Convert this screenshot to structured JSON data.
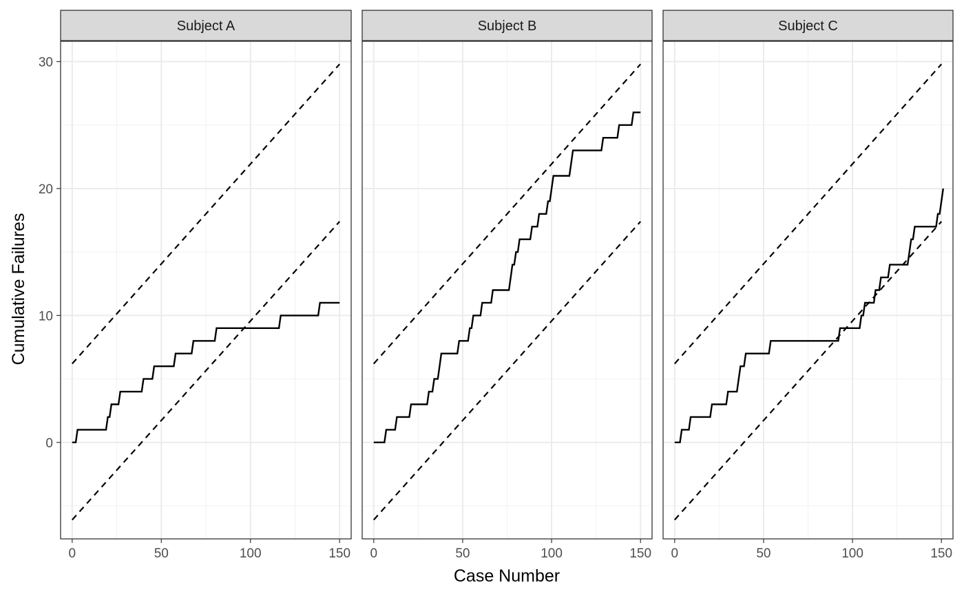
{
  "chart_data": {
    "type": "line",
    "xlabel": "Case Number",
    "ylabel": "Cumulative Failures",
    "xlim": [
      -6.5,
      156.5
    ],
    "ylim": [
      -7.6,
      31.6
    ],
    "x_ticks": [
      0,
      50,
      100,
      150
    ],
    "y_ticks": [
      0,
      10,
      20,
      30
    ],
    "grid": true,
    "bounds": {
      "upper": {
        "x": [
          0,
          150
        ],
        "y": [
          6.2,
          29.8
        ]
      },
      "lower": {
        "x": [
          0,
          150
        ],
        "y": [
          -6.1,
          17.4
        ]
      }
    },
    "panels": [
      {
        "title": "Subject A",
        "steps": [
          [
            0,
            0
          ],
          [
            2,
            0
          ],
          [
            3,
            1
          ],
          [
            19,
            1
          ],
          [
            20,
            2
          ],
          [
            21,
            2
          ],
          [
            22,
            3
          ],
          [
            26,
            3
          ],
          [
            27,
            4
          ],
          [
            39,
            4
          ],
          [
            40,
            5
          ],
          [
            45,
            5
          ],
          [
            46,
            6
          ],
          [
            57,
            6
          ],
          [
            58,
            7
          ],
          [
            67,
            7
          ],
          [
            68,
            8
          ],
          [
            80,
            8
          ],
          [
            81,
            9
          ],
          [
            116,
            9
          ],
          [
            117,
            10
          ],
          [
            138,
            10
          ],
          [
            139,
            11
          ],
          [
            150,
            11
          ]
        ]
      },
      {
        "title": "Subject B",
        "steps": [
          [
            0,
            0
          ],
          [
            6,
            0
          ],
          [
            7,
            1
          ],
          [
            12,
            1
          ],
          [
            13,
            2
          ],
          [
            20,
            2
          ],
          [
            21,
            3
          ],
          [
            30,
            3
          ],
          [
            31,
            4
          ],
          [
            33,
            4
          ],
          [
            34,
            5
          ],
          [
            36,
            5
          ],
          [
            37,
            6
          ],
          [
            37,
            6
          ],
          [
            38,
            7
          ],
          [
            47,
            7
          ],
          [
            48,
            8
          ],
          [
            53,
            8
          ],
          [
            54,
            9
          ],
          [
            55,
            9
          ],
          [
            56,
            10
          ],
          [
            60,
            10
          ],
          [
            61,
            11
          ],
          [
            66,
            11
          ],
          [
            67,
            12
          ],
          [
            76,
            12
          ],
          [
            77,
            13
          ],
          [
            77,
            13
          ],
          [
            78,
            14
          ],
          [
            79,
            14
          ],
          [
            80,
            15
          ],
          [
            81,
            15
          ],
          [
            82,
            16
          ],
          [
            88,
            16
          ],
          [
            89,
            17
          ],
          [
            92,
            17
          ],
          [
            93,
            18
          ],
          [
            97,
            18
          ],
          [
            98,
            19
          ],
          [
            99,
            19
          ],
          [
            100,
            20
          ],
          [
            100,
            20
          ],
          [
            101,
            21
          ],
          [
            110,
            21
          ],
          [
            111,
            22
          ],
          [
            111,
            22
          ],
          [
            112,
            23
          ],
          [
            128,
            23
          ],
          [
            129,
            24
          ],
          [
            137,
            24
          ],
          [
            138,
            25
          ],
          [
            145,
            25
          ],
          [
            146,
            26
          ],
          [
            150,
            26
          ]
        ]
      },
      {
        "title": "Subject C",
        "steps": [
          [
            0,
            0
          ],
          [
            3,
            0
          ],
          [
            4,
            1
          ],
          [
            8,
            1
          ],
          [
            9,
            2
          ],
          [
            20,
            2
          ],
          [
            21,
            3
          ],
          [
            29,
            3
          ],
          [
            30,
            4
          ],
          [
            35,
            4
          ],
          [
            36,
            5
          ],
          [
            36,
            5
          ],
          [
            37,
            6
          ],
          [
            39,
            6
          ],
          [
            40,
            7
          ],
          [
            53,
            7
          ],
          [
            54,
            8
          ],
          [
            92,
            8
          ],
          [
            93,
            9
          ],
          [
            104,
            9
          ],
          [
            105,
            10
          ],
          [
            106,
            10
          ],
          [
            107,
            11
          ],
          [
            112,
            11
          ],
          [
            113,
            12
          ],
          [
            115,
            12
          ],
          [
            116,
            13
          ],
          [
            120,
            13
          ],
          [
            121,
            14
          ],
          [
            131,
            14
          ],
          [
            132,
            15
          ],
          [
            132,
            15
          ],
          [
            133,
            16
          ],
          [
            134,
            16
          ],
          [
            135,
            17
          ],
          [
            147,
            17
          ],
          [
            148,
            18
          ],
          [
            149,
            18
          ],
          [
            150,
            19
          ],
          [
            150,
            19
          ],
          [
            151,
            20
          ]
        ]
      }
    ]
  }
}
